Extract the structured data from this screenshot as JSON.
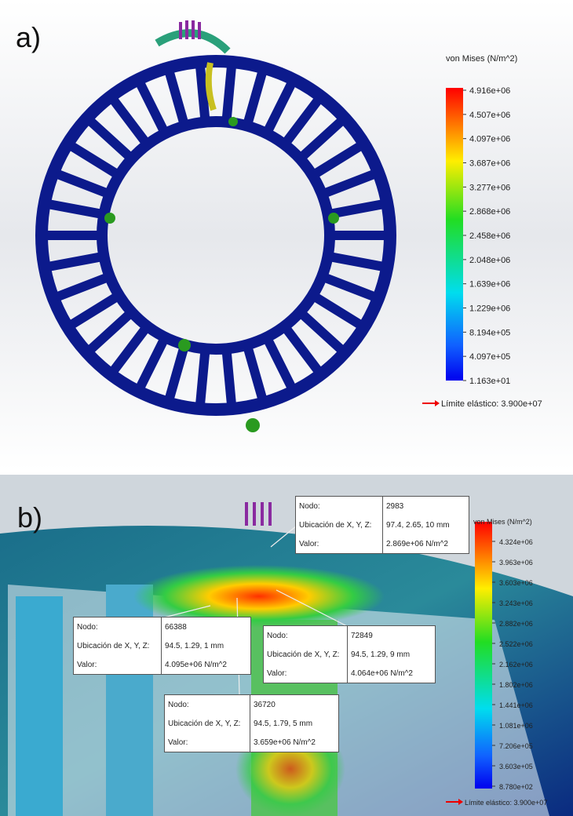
{
  "panels": [
    {
      "label": "a)",
      "legend": {
        "title": "von Mises (N/m^2)",
        "ticks": [
          "4.916e+06",
          "4.507e+06",
          "4.097e+06",
          "3.687e+06",
          "3.277e+06",
          "2.868e+06",
          "2.458e+06",
          "2.048e+06",
          "1.639e+06",
          "1.229e+06",
          "8.194e+05",
          "4.097e+05",
          "1.163e+01"
        ],
        "yield": "Límite elástico: 3.900e+07"
      }
    },
    {
      "label": "b)",
      "legend": {
        "title": "von Mises (N/m^2)",
        "ticks": [
          "4.324e+06",
          "3.963e+06",
          "3.603e+06",
          "3.243e+06",
          "2.882e+06",
          "2.522e+06",
          "2.162e+06",
          "1.802e+06",
          "1.441e+06",
          "1.081e+06",
          "7.206e+05",
          "3.603e+05",
          "8.780e+02"
        ],
        "yield": "Límite elástico: 3.900e+07"
      },
      "probes": [
        {
          "rows": [
            [
              "Nodo:",
              "2983"
            ],
            [
              "Ubicación de X, Y, Z:",
              "97.4, 2.65, 10 mm"
            ],
            [
              "Valor:",
              "2.869e+06  N/m^2"
            ]
          ]
        },
        {
          "rows": [
            [
              "Nodo:",
              "66388"
            ],
            [
              "Ubicación de X, Y, Z:",
              "94.5, 1.29, 1 mm"
            ],
            [
              "Valor:",
              "4.095e+06  N/m^2"
            ]
          ]
        },
        {
          "rows": [
            [
              "Nodo:",
              "72849"
            ],
            [
              "Ubicación de X, Y, Z:",
              "94.5, 1.29, 9 mm"
            ],
            [
              "Valor:",
              "4.064e+06  N/m^2"
            ]
          ]
        },
        {
          "rows": [
            [
              "Nodo:",
              "36720"
            ],
            [
              "Ubicación de X, Y, Z:",
              "94.5, 1.79, 5 mm"
            ],
            [
              "Valor:",
              "3.659e+06  N/m^2"
            ]
          ]
        }
      ]
    }
  ]
}
